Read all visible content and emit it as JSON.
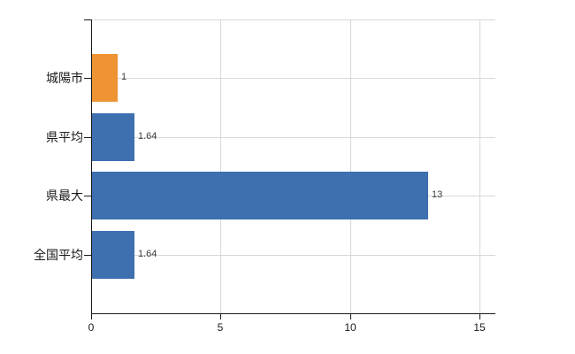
{
  "chart_data": {
    "type": "bar",
    "orientation": "horizontal",
    "title": "",
    "xlabel": "",
    "ylabel": "",
    "categories": [
      "城陽市",
      "県平均",
      "県最大",
      "全国平均"
    ],
    "values": [
      1,
      1.64,
      13,
      1.64
    ],
    "value_labels": [
      "1",
      "1.64",
      "13",
      "1.64"
    ],
    "bar_colors": [
      "#EE9434",
      "#3E6FAE",
      "#3E6FAE",
      "#3E6FAE"
    ],
    "x_tick_labels": [
      "0",
      "5",
      "10",
      "15"
    ],
    "x_tick_values": [
      0,
      5,
      10,
      15
    ],
    "xlim": [
      0,
      15.6
    ],
    "grid": true,
    "legend": false,
    "colors": {
      "axis": "#1a1a1a",
      "grid": "#d8d8d8",
      "value_label": "#3c3c3c",
      "category_label": "#1a1a1a",
      "background": "#ffffff"
    }
  }
}
